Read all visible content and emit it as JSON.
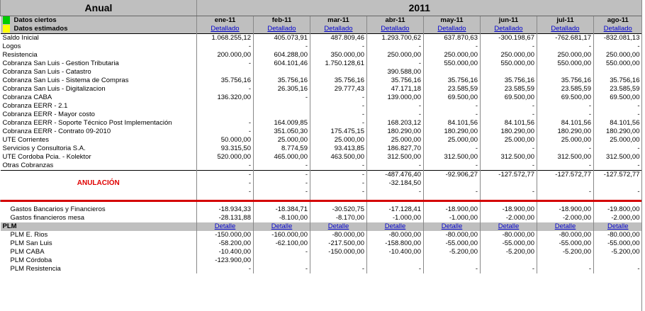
{
  "header": {
    "left_title": "Anual",
    "year": "2011"
  },
  "legend": {
    "real_label": "Datos ciertos",
    "estimated_label": "Datos estimados",
    "real_color": "#00cc00",
    "estimated_color": "#ffff00"
  },
  "months": [
    "ene-11",
    "feb-11",
    "mar-11",
    "abr-11",
    "may-11",
    "jun-11",
    "jul-11",
    "ago-11"
  ],
  "detail_link": "Detallado",
  "short_link": "Detalle",
  "rows": [
    {
      "label": "Saldo Inicial",
      "values": [
        "1.068.255,12",
        "405.073,91",
        "487.809,46",
        "1.293.700,62",
        "637.870,63",
        "-300.198,67",
        "-762.681,17",
        "-832.081,13"
      ]
    },
    {
      "label": "Logos",
      "values": [
        "-",
        "-",
        "-",
        "-",
        "-",
        "-",
        "-",
        "-"
      ]
    },
    {
      "label": "Resistencia",
      "values": [
        "200.000,00",
        "604.288,00",
        "350.000,00",
        "250.000,00",
        "250.000,00",
        "250.000,00",
        "250.000,00",
        "250.000,00"
      ]
    },
    {
      "label": "Cobranza San Luis - Gestion Tributaria",
      "values": [
        "-",
        "604.101,46",
        "1.750.128,61",
        "-",
        "550.000,00",
        "550.000,00",
        "550.000,00",
        "550.000,00"
      ]
    },
    {
      "label": "Cobranza San Luis - Catastro",
      "values": [
        "",
        "",
        "",
        "390.588,00",
        "",
        "",
        "",
        ""
      ]
    },
    {
      "label": "Cobranza San Luis - Sistema de Compras",
      "values": [
        "35.756,16",
        "35.756,16",
        "35.756,16",
        "35.756,16",
        "35.756,16",
        "35.756,16",
        "35.756,16",
        "35.756,16"
      ]
    },
    {
      "label": "Cobranza San Luis - Digitalizacion",
      "values": [
        "-",
        "26.305,16",
        "29.777,43",
        "47.171,18",
        "23.585,59",
        "23.585,59",
        "23.585,59",
        "23.585,59"
      ]
    },
    {
      "label": "Cobranza CABA",
      "values": [
        "136.320,00",
        "-",
        "-",
        "139.000,00",
        "69.500,00",
        "69.500,00",
        "69.500,00",
        "69.500,00"
      ]
    },
    {
      "label": "Cobranza EERR - 2.1",
      "values": [
        "",
        "",
        "-",
        "-",
        "-",
        "-",
        "-",
        "-"
      ]
    },
    {
      "label": "Cobranza EERR - Mayor costo",
      "values": [
        "",
        "",
        "-",
        "-",
        "-",
        "-",
        "-",
        "-"
      ]
    },
    {
      "label": "Cobranza EERR - Soporte Técnico Post Implementación",
      "values": [
        "-",
        "164.009,85",
        "-",
        "168.203,12",
        "84.101,56",
        "84.101,56",
        "84.101,56",
        "84.101,56"
      ]
    },
    {
      "label": "Cobranza EERR - Contrato 09-2010",
      "values": [
        "-",
        "351.050,30",
        "175.475,15",
        "180.290,00",
        "180.290,00",
        "180.290,00",
        "180.290,00",
        "180.290,00"
      ]
    },
    {
      "label": "UTE Corrientes",
      "values": [
        "50.000,00",
        "25.000,00",
        "25.000,00",
        "25.000,00",
        "25.000,00",
        "25.000,00",
        "25.000,00",
        "25.000,00"
      ]
    },
    {
      "label": "Servicios y Consultoria S.A.",
      "values": [
        "93.315,50",
        "8.774,59",
        "93.413,85",
        "186.827,70",
        "-",
        "-",
        "-",
        "-"
      ]
    },
    {
      "label": "UTE Cordoba Pcia. - Kolektor",
      "values": [
        "520.000,00",
        "465.000,00",
        "463.500,00",
        "312.500,00",
        "312.500,00",
        "312.500,00",
        "312.500,00",
        "312.500,00"
      ]
    },
    {
      "label": "Otras Cobranzas",
      "values": [
        "-",
        "-",
        "-",
        "-",
        "-",
        "-",
        "-",
        "-"
      ]
    }
  ],
  "anulacion": {
    "label": "ANULACIÓN",
    "rows": [
      [
        "-",
        "-",
        "-",
        "-487.476,40",
        "-92.906,27",
        "-127.572,77",
        "-127.572,77",
        "-127.572,77"
      ],
      [
        "-",
        "-",
        "-",
        "-32.184,50",
        "",
        "",
        "",
        ""
      ],
      [
        "-",
        "-",
        "-",
        "-",
        "-",
        "-",
        "-",
        "-"
      ]
    ]
  },
  "gastos": [
    {
      "label": "Gastos Bancarios y Financieros",
      "values": [
        "-18.934,33",
        "-18.384,71",
        "-30.520,75",
        "-17.128,41",
        "-18.900,00",
        "-18.900,00",
        "-18.900,00",
        "-19.800,00"
      ]
    },
    {
      "label": "Gastos financieros mesa",
      "values": [
        "-28.131,88",
        "-8.100,00",
        "-8.170,00",
        "-1.000,00",
        "-1.000,00",
        "-2.000,00",
        "-2.000,00",
        "-2.000,00"
      ]
    }
  ],
  "plm": {
    "label": "PLM",
    "rows": [
      {
        "label": "PLM  E. Rios",
        "values": [
          "-150.000,00",
          "-160.000,00",
          "-80.000,00",
          "-80.000,00",
          "-80.000,00",
          "-80.000,00",
          "-80.000,00",
          "-80.000,00"
        ]
      },
      {
        "label": "PLM San Luis",
        "values": [
          "-58.200,00",
          "-62.100,00",
          "-217.500,00",
          "-158.800,00",
          "-55.000,00",
          "-55.000,00",
          "-55.000,00",
          "-55.000,00"
        ]
      },
      {
        "label": "PLM CABA",
        "values": [
          "-10.400,00",
          "-",
          "-150.000,00",
          "-10.400,00",
          "-5.200,00",
          "-5.200,00",
          "-5.200,00",
          "-5.200,00"
        ]
      },
      {
        "label": "PLM Córdoba",
        "values": [
          "-123.900,00",
          "",
          "",
          "",
          "",
          "",
          "",
          ""
        ]
      },
      {
        "label": "PLM Resistencia",
        "values": [
          "-",
          "-",
          "-",
          "-",
          "-",
          "-",
          "-",
          "-"
        ]
      }
    ]
  }
}
